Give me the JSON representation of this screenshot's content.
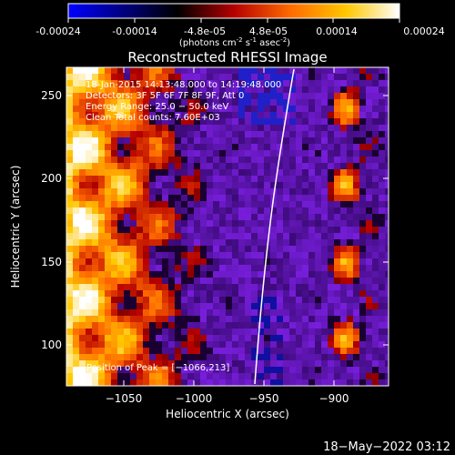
{
  "colorbar": {
    "tick_labels": [
      "-0.00024",
      "-0.00014",
      "-4.8e-05",
      "4.8e-05",
      "0.00014",
      "0.00024"
    ],
    "units_prefix": "(photons cm",
    "units_exp1": "-2",
    "units_mid": " s",
    "units_exp2": "-1",
    "units_mid2": " asec",
    "units_exp3": "-2",
    "units_suffix": ")",
    "colormap": [
      "#0000ff",
      "#000000",
      "#b40000",
      "#ff6a00",
      "#ffc800",
      "#ffffff"
    ]
  },
  "plot": {
    "title": "Reconstructed RHESSI Image",
    "xlabel": "Heliocentric X (arcsec)",
    "ylabel": "Heliocentric Y (arcsec)",
    "x_ticks": [
      "−1050",
      "−1000",
      "−950",
      "−900"
    ],
    "y_ticks": [
      "100",
      "150",
      "200",
      "250"
    ],
    "xlim": [
      -1082,
      -890
    ],
    "ylim": [
      73,
      270
    ]
  },
  "annotations": {
    "time_range": "18-Jan-2015 14:13:48.000 to 14:19:48.000",
    "detectors": "Detectors: 3F 5F 6F 7F 8F 9F, Att 0",
    "energy": "Energy Range: 25.0 − 50.0 keV",
    "clean": "Clean     Total counts: 7.60E+03",
    "peak": "Position of Peak = [−1066,213]"
  },
  "footer": {
    "timestamp": "18−May−2022 03:12"
  }
}
